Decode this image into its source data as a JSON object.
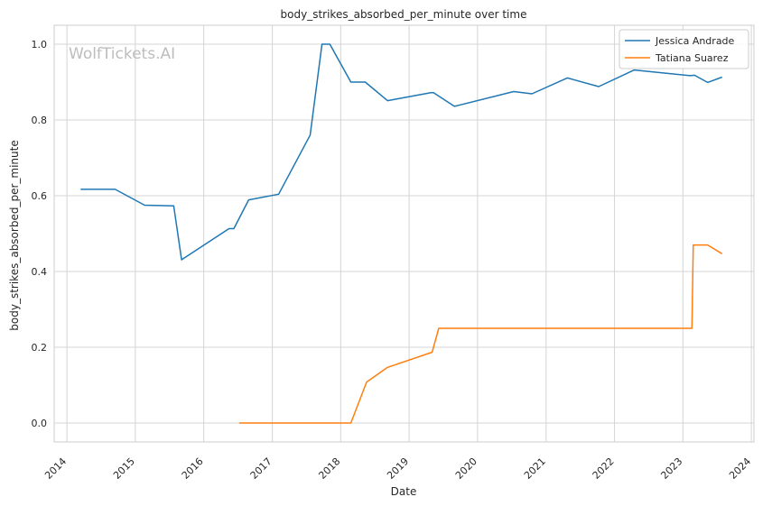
{
  "chart_data": {
    "type": "line",
    "title": "body_strikes_absorbed_per_minute over time",
    "xlabel": "Date",
    "ylabel": "body_strikes_absorbed_per_minute",
    "watermark": "WolfTickets.AI",
    "x_ticks": [
      "2014",
      "2015",
      "2016",
      "2017",
      "2018",
      "2019",
      "2020",
      "2021",
      "2022",
      "2023",
      "2024"
    ],
    "y_ticks": [
      "0.0",
      "0.2",
      "0.4",
      "0.6",
      "0.8",
      "1.0"
    ],
    "xlim": [
      "2013-10-25",
      "2024-01-15"
    ],
    "ylim": [
      -0.05,
      1.05
    ],
    "grid": true,
    "legend_position": "top-right",
    "series": [
      {
        "name": "Jessica Andrade",
        "color": "#1f77b4",
        "points": [
          [
            "2014-03-15",
            0.617
          ],
          [
            "2014-09-15",
            0.617
          ],
          [
            "2015-02-20",
            0.575
          ],
          [
            "2015-07-25",
            0.573
          ],
          [
            "2015-09-05",
            0.431
          ],
          [
            "2016-05-15",
            0.513
          ],
          [
            "2016-06-10",
            0.513
          ],
          [
            "2016-08-28",
            0.589
          ],
          [
            "2017-02-04",
            0.604
          ],
          [
            "2017-07-22",
            0.76
          ],
          [
            "2017-09-23",
            1.0
          ],
          [
            "2017-11-04",
            1.0
          ],
          [
            "2018-02-24",
            0.9
          ],
          [
            "2018-05-12",
            0.9
          ],
          [
            "2018-09-08",
            0.851
          ],
          [
            "2019-04-27",
            0.872
          ],
          [
            "2019-05-11",
            0.872
          ],
          [
            "2019-08-31",
            0.836
          ],
          [
            "2020-07-12",
            0.875
          ],
          [
            "2020-10-17",
            0.869
          ],
          [
            "2021-04-24",
            0.911
          ],
          [
            "2021-10-09",
            0.888
          ],
          [
            "2022-04-16",
            0.932
          ],
          [
            "2023-02-11",
            0.917
          ],
          [
            "2023-03-04",
            0.918
          ],
          [
            "2023-05-13",
            0.899
          ],
          [
            "2023-07-29",
            0.913
          ]
        ]
      },
      {
        "name": "Tatiana Suarez",
        "color": "#ff7f0e",
        "points": [
          [
            "2016-07-08",
            0.0
          ],
          [
            "2018-02-24",
            0.0
          ],
          [
            "2018-05-19",
            0.108
          ],
          [
            "2018-09-08",
            0.147
          ],
          [
            "2019-05-04",
            0.187
          ],
          [
            "2019-06-08",
            0.25
          ],
          [
            "2023-02-18",
            0.25
          ],
          [
            "2023-02-25",
            0.47
          ],
          [
            "2023-05-13",
            0.47
          ],
          [
            "2023-07-29",
            0.447
          ]
        ]
      }
    ]
  }
}
